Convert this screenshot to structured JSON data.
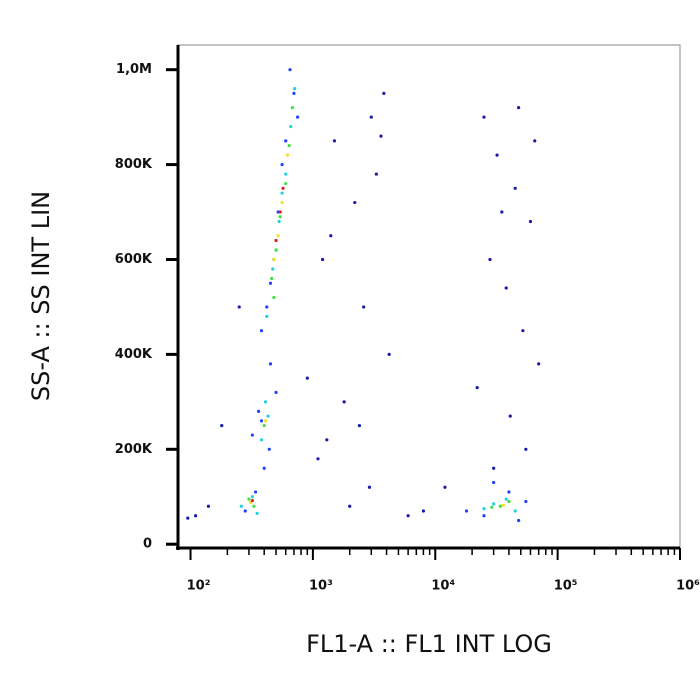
{
  "chart_data": {
    "type": "scatter",
    "xlabel": "FL1-A :: FL1 INT LOG",
    "ylabel": "SS-A :: SS INT LIN",
    "xscale": "log",
    "xlim": [
      79,
      1000000
    ],
    "ylim": [
      -8000,
      1052000
    ],
    "xticks": [
      {
        "value": 100,
        "label": "10²"
      },
      {
        "value": 1000,
        "label": "10³"
      },
      {
        "value": 10000,
        "label": "10⁴"
      },
      {
        "value": 100000,
        "label": "10⁵"
      },
      {
        "value": 1000000,
        "label": "10⁶"
      }
    ],
    "xminorticks": [
      200,
      300,
      400,
      500,
      600,
      700,
      800,
      900,
      2000,
      3000,
      4000,
      5000,
      6000,
      7000,
      8000,
      9000,
      20000,
      30000,
      40000,
      50000,
      60000,
      70000,
      80000,
      90000,
      200000,
      300000,
      400000,
      500000,
      600000,
      700000,
      800000,
      900000
    ],
    "yticks": [
      0,
      {
        "value": 200000,
        "label": "200K"
      },
      {
        "value": 400000,
        "label": "400K"
      },
      {
        "value": 600000,
        "label": "600K"
      },
      {
        "value": 800000,
        "label": "800K"
      },
      {
        "value": 1000000,
        "label": "1,0M"
      }
    ],
    "series": [
      {
        "color": "#1a1aa8",
        "x": [
          1500,
          2200,
          3000,
          3800,
          1200,
          2600,
          4200,
          1800,
          3300,
          2400,
          1100,
          2900,
          3600,
          1400,
          2000,
          25000,
          32000,
          45000,
          60000,
          28000,
          38000,
          52000,
          70000,
          22000,
          41000,
          55000,
          30000,
          48000,
          65000,
          35000,
          140,
          110,
          900,
          1300,
          6000,
          8000,
          12000,
          180,
          250,
          95
        ],
        "values": [
          850000,
          720000,
          900000,
          950000,
          600000,
          500000,
          400000,
          300000,
          780000,
          250000,
          180000,
          120000,
          860000,
          650000,
          80000,
          900000,
          820000,
          750000,
          680000,
          600000,
          540000,
          450000,
          380000,
          330000,
          270000,
          200000,
          160000,
          920000,
          850000,
          700000,
          80000,
          60000,
          350000,
          220000,
          60000,
          70000,
          120000,
          250000,
          500000,
          55000
        ]
      },
      {
        "color": "#2040ff",
        "x": [
          380,
          450,
          520,
          600,
          700,
          650,
          420,
          480,
          750,
          560,
          320,
          360,
          440,
          500,
          280,
          340,
          400,
          450,
          380,
          25000,
          40000,
          55000,
          30000,
          18000,
          48000
        ],
        "values": [
          450000,
          550000,
          700000,
          850000,
          950000,
          1000000,
          500000,
          600000,
          900000,
          800000,
          230000,
          280000,
          200000,
          320000,
          70000,
          110000,
          160000,
          380000,
          260000,
          60000,
          110000,
          90000,
          130000,
          70000,
          50000
        ]
      },
      {
        "color": "#20d0e0",
        "x": [
          420,
          470,
          530,
          600,
          660,
          710,
          500,
          560,
          380,
          430,
          410,
          260,
          320,
          350,
          30000,
          38000,
          45000,
          25000
        ],
        "values": [
          480000,
          580000,
          680000,
          780000,
          880000,
          960000,
          620000,
          740000,
          220000,
          270000,
          300000,
          80000,
          100000,
          65000,
          85000,
          95000,
          70000,
          75000
        ]
      },
      {
        "color": "#40e040",
        "x": [
          460,
          500,
          540,
          600,
          640,
          680,
          480,
          400,
          300,
          330,
          34000,
          40000,
          29000
        ],
        "values": [
          560000,
          620000,
          690000,
          760000,
          840000,
          920000,
          520000,
          250000,
          95000,
          80000,
          80000,
          90000,
          78000
        ]
      },
      {
        "color": "#f0e020",
        "x": [
          480,
          520,
          560,
          620,
          410,
          310,
          36000
        ],
        "values": [
          600000,
          650000,
          720000,
          820000,
          260000,
          88000,
          82000
        ]
      },
      {
        "color": "#e02010",
        "x": [
          500,
          540,
          570,
          320
        ],
        "values": [
          640000,
          700000,
          750000,
          92000
        ]
      }
    ]
  }
}
